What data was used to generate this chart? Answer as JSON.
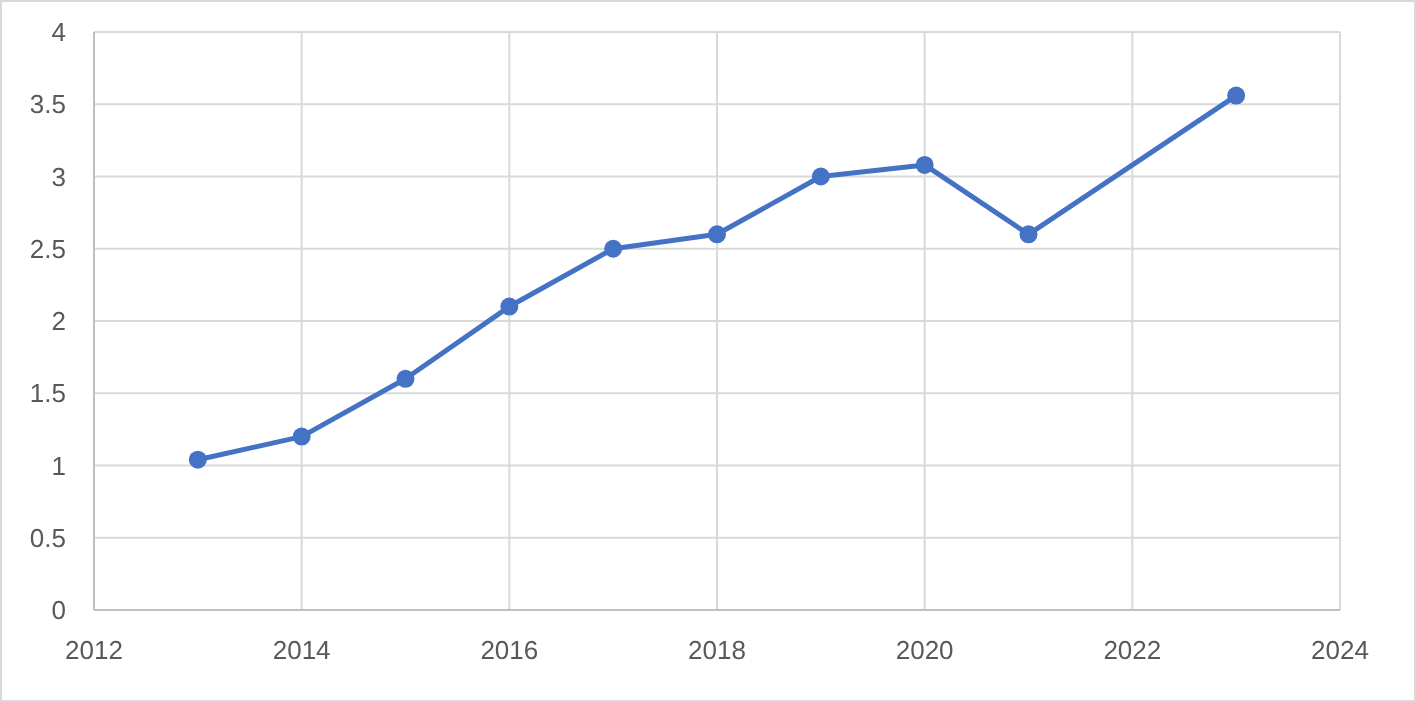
{
  "chart_data": {
    "type": "line",
    "x": [
      2013,
      2014,
      2015,
      2016,
      2017,
      2018,
      2019,
      2020,
      2021,
      2023
    ],
    "series": [
      {
        "color": "#4472c4",
        "values": [
          1.04,
          1.2,
          1.6,
          2.1,
          2.5,
          2.6,
          3.0,
          3.08,
          2.6,
          3.56
        ]
      }
    ],
    "xlim": [
      2012,
      2024
    ],
    "xticks": [
      2012,
      2014,
      2016,
      2018,
      2020,
      2022,
      2024
    ],
    "ylim": [
      0,
      4
    ],
    "yticks": [
      0,
      0.5,
      1,
      1.5,
      2,
      2.5,
      3,
      3.5,
      4
    ],
    "grid": true,
    "marker": "circle",
    "line_style": "solid"
  }
}
